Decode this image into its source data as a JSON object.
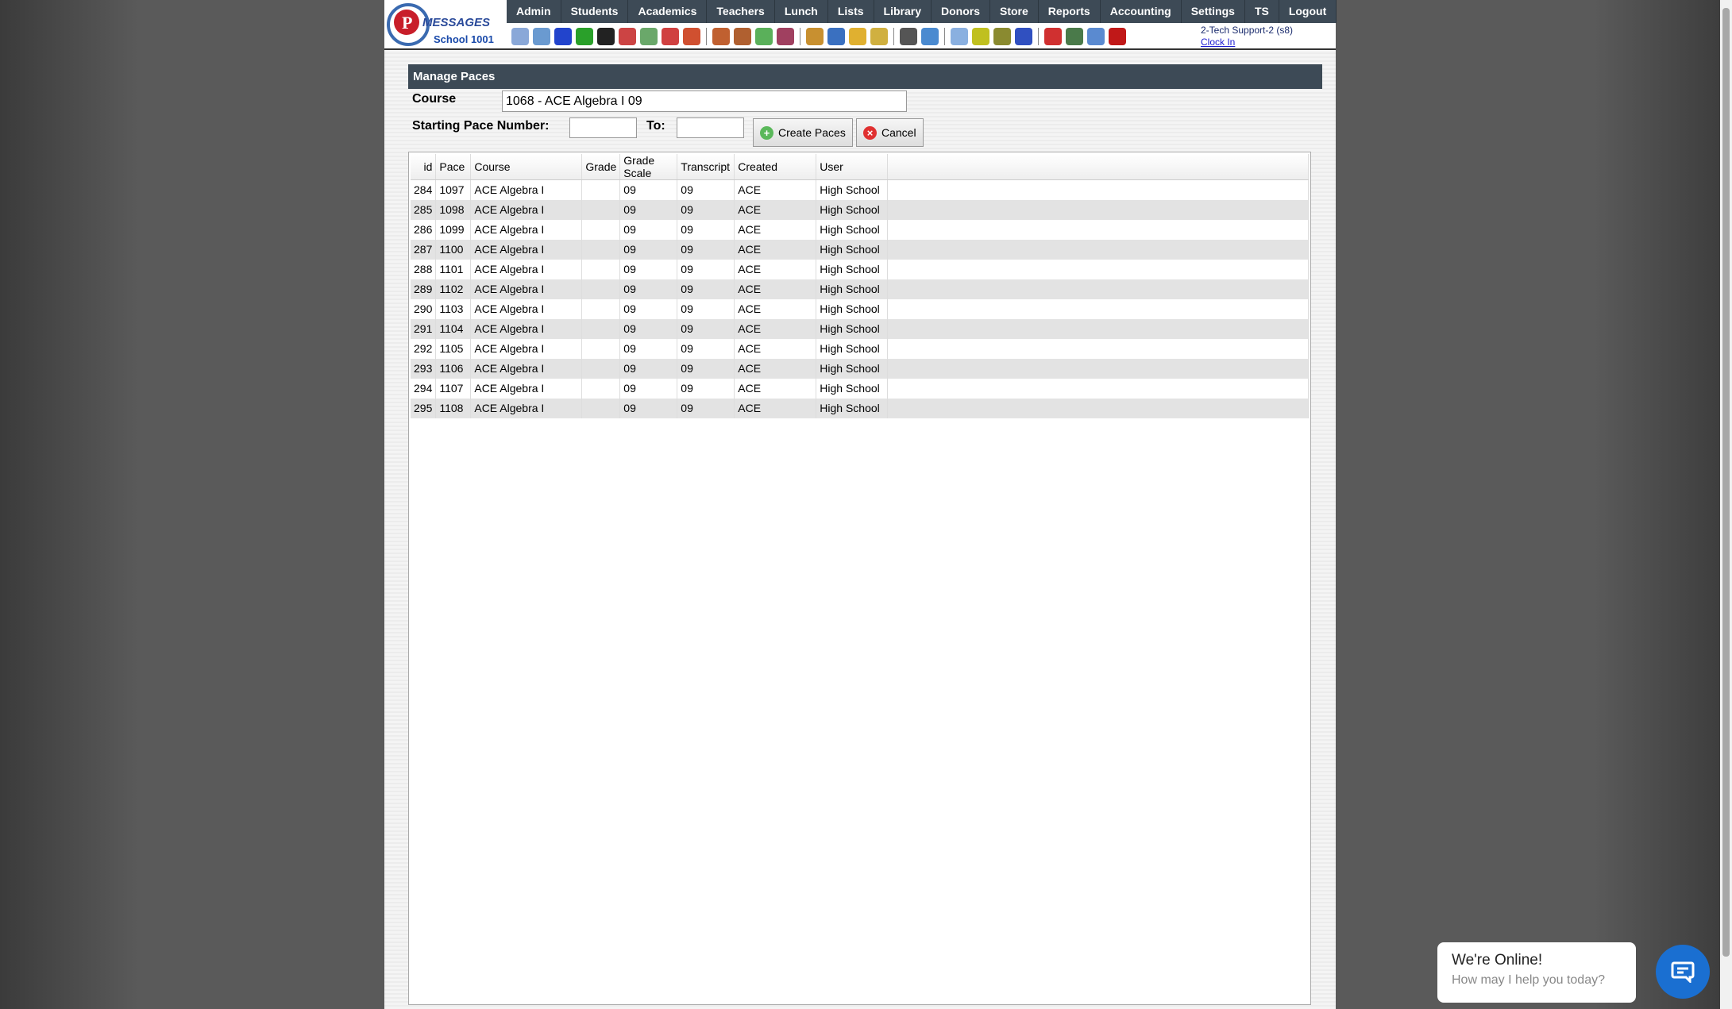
{
  "logo": {
    "brand": "MESSAGES",
    "school": "School 1001"
  },
  "nav": [
    "Admin",
    "Students",
    "Academics",
    "Teachers",
    "Lunch",
    "Lists",
    "Library",
    "Donors",
    "Store",
    "Reports",
    "Accounting",
    "Settings",
    "TS",
    "Logout"
  ],
  "toolbar": [
    {
      "icon": "search-icon",
      "color": "#8aa8d8"
    },
    {
      "icon": "calendar-grid-icon",
      "color": "#6a9ad0"
    },
    {
      "icon": "email-at-icon",
      "color": "#2244cc"
    },
    {
      "icon": "chat-icon",
      "color": "#2aa02a"
    },
    {
      "icon": "mobile-phone-icon",
      "color": "#222"
    },
    {
      "icon": "speaker-icon",
      "color": "#c44"
    },
    {
      "icon": "document-icon",
      "color": "#6aa86a"
    },
    {
      "icon": "calendar-icon",
      "color": "#d04040"
    },
    {
      "icon": "megaphone-icon",
      "color": "#d05030"
    },
    "sep",
    {
      "icon": "add-student-icon",
      "color": "#c06030"
    },
    {
      "icon": "student-icon",
      "color": "#b06030"
    },
    {
      "icon": "ticket-icon",
      "color": "#5ab05a"
    },
    {
      "icon": "group-icon",
      "color": "#a04060"
    },
    "sep",
    {
      "icon": "burger-icon",
      "color": "#c89030"
    },
    {
      "icon": "book-icon",
      "color": "#3a70c0"
    },
    {
      "icon": "bell-icon",
      "color": "#e0b030"
    },
    {
      "icon": "export-icon",
      "color": "#d0b040"
    },
    "sep",
    {
      "icon": "teacher-icon",
      "color": "#555"
    },
    {
      "icon": "clock-icon",
      "color": "#4a8ad0"
    },
    "sep",
    {
      "icon": "calculator-icon",
      "color": "#8ab0e0"
    },
    {
      "icon": "card-icon",
      "color": "#c0c020"
    },
    {
      "icon": "printer-icon",
      "color": "#8a8a30"
    },
    {
      "icon": "ap-icon",
      "color": "#3050c0"
    },
    "sep",
    {
      "icon": "pdf-icon",
      "color": "#d03030"
    },
    {
      "icon": "money-icon",
      "color": "#4a7a4a"
    },
    {
      "icon": "help-icon",
      "color": "#5a8ad0"
    },
    {
      "icon": "power-icon",
      "color": "#c01818"
    }
  ],
  "user": {
    "name": "2-Tech Support-2 (s8)",
    "clock": "Clock In"
  },
  "panel": {
    "title": "Manage Paces",
    "course_label": "Course",
    "course_value": "1068 - ACE Algebra I  09",
    "start_label": "Starting Pace Number:",
    "to_label": "To:",
    "create_label": "Create Paces",
    "cancel_label": "Cancel"
  },
  "table": {
    "headers": [
      "id",
      "Pace",
      "Course",
      "Grade",
      "Grade Scale",
      "Transcript",
      "Created",
      "User"
    ],
    "rows": [
      [
        "284",
        "1097",
        "ACE Algebra I",
        "",
        "09",
        "09",
        "ACE",
        "High School"
      ],
      [
        "285",
        "1098",
        "ACE Algebra I",
        "",
        "09",
        "09",
        "ACE",
        "High School"
      ],
      [
        "286",
        "1099",
        "ACE Algebra I",
        "",
        "09",
        "09",
        "ACE",
        "High School"
      ],
      [
        "287",
        "1100",
        "ACE Algebra I",
        "",
        "09",
        "09",
        "ACE",
        "High School"
      ],
      [
        "288",
        "1101",
        "ACE Algebra I",
        "",
        "09",
        "09",
        "ACE",
        "High School"
      ],
      [
        "289",
        "1102",
        "ACE Algebra I",
        "",
        "09",
        "09",
        "ACE",
        "High School"
      ],
      [
        "290",
        "1103",
        "ACE Algebra I",
        "",
        "09",
        "09",
        "ACE",
        "High School"
      ],
      [
        "291",
        "1104",
        "ACE Algebra I",
        "",
        "09",
        "09",
        "ACE",
        "High School"
      ],
      [
        "292",
        "1105",
        "ACE Algebra I",
        "",
        "09",
        "09",
        "ACE",
        "High School"
      ],
      [
        "293",
        "1106",
        "ACE Algebra I",
        "",
        "09",
        "09",
        "ACE",
        "High School"
      ],
      [
        "294",
        "1107",
        "ACE Algebra I",
        "",
        "09",
        "09",
        "ACE",
        "High School"
      ],
      [
        "295",
        "1108",
        "ACE Algebra I",
        "",
        "09",
        "09",
        "ACE",
        "High School"
      ]
    ]
  },
  "chat": {
    "title": "We're Online!",
    "subtitle": "How may I help you today?",
    "accent": "#1a6fd1"
  }
}
